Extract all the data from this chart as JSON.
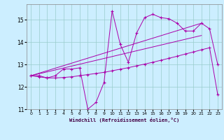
{
  "xlabel": "Windchill (Refroidissement éolien,°C)",
  "background_color": "#cceeff",
  "grid_color": "#99cccc",
  "line_color": "#aa00aa",
  "xlim": [
    -0.5,
    23.5
  ],
  "ylim": [
    11.0,
    15.7
  ],
  "xticks": [
    0,
    1,
    2,
    3,
    4,
    5,
    6,
    7,
    8,
    9,
    10,
    11,
    12,
    13,
    14,
    15,
    16,
    17,
    18,
    19,
    20,
    21,
    22,
    23
  ],
  "yticks": [
    11,
    12,
    13,
    14,
    15
  ],
  "series1_x": [
    0,
    1,
    2,
    3,
    4,
    5,
    6,
    7,
    8,
    9,
    10,
    11,
    12,
    13,
    14,
    15,
    16,
    17,
    18,
    19,
    20,
    21,
    22,
    23
  ],
  "series1_y": [
    12.5,
    12.5,
    12.4,
    12.5,
    12.8,
    12.8,
    12.85,
    11.0,
    11.3,
    12.2,
    15.4,
    13.9,
    13.1,
    14.4,
    15.1,
    15.25,
    15.1,
    15.05,
    14.85,
    14.5,
    14.5,
    14.85,
    14.6,
    13.0
  ],
  "series2_x": [
    0,
    21
  ],
  "series2_y": [
    12.5,
    14.85
  ],
  "series3_x": [
    0,
    21
  ],
  "series3_y": [
    12.5,
    14.3
  ],
  "series4_x": [
    0,
    1,
    2,
    3,
    4,
    5,
    6,
    7,
    8,
    9,
    10,
    11,
    12,
    13,
    14,
    15,
    16,
    17,
    18,
    19,
    20,
    21,
    22,
    23
  ],
  "series4_y": [
    12.5,
    12.45,
    12.4,
    12.4,
    12.42,
    12.45,
    12.5,
    12.55,
    12.6,
    12.65,
    12.72,
    12.79,
    12.86,
    12.94,
    13.02,
    13.1,
    13.19,
    13.28,
    13.37,
    13.47,
    13.56,
    13.66,
    13.75,
    11.65
  ]
}
